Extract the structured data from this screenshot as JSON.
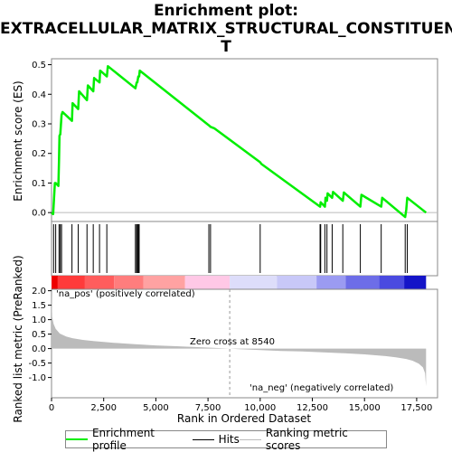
{
  "chart_data": {
    "type": "line",
    "title_line1": "Enrichment plot:",
    "title_line2": "EXTRACELLULAR_MATRIX_STRUCTURAL_CONSTITUEN",
    "title_line3": "T",
    "ylabel_top": "Enrichment score (ES)",
    "ylabel_bottom": "Ranked list metric (PreRanked)",
    "xlabel": "Rank in Ordered Dataset",
    "xlim": [
      0,
      18500
    ],
    "x_ticks": [
      0,
      2500,
      5000,
      7500,
      10000,
      12500,
      15000,
      17500
    ],
    "x_tick_labels": [
      "0",
      "2,500",
      "5,000",
      "7,500",
      "10,000",
      "12,500",
      "15,000",
      "17,500"
    ],
    "es_ylim": [
      -0.03,
      0.52
    ],
    "es_ticks": [
      0.0,
      0.1,
      0.2,
      0.3,
      0.4,
      0.5
    ],
    "es_tick_labels": [
      "0.0",
      "0.1",
      "0.2",
      "0.3",
      "0.4",
      "0.5"
    ],
    "metric_ylim": [
      -1.7,
      2.05
    ],
    "metric_ticks": [
      2.0,
      1.5,
      1.0,
      0.5,
      0.0,
      -0.5,
      -1.0
    ],
    "metric_tick_labels": [
      "2.0",
      "1.5",
      "1.0",
      "0.5",
      "0.0",
      "-0.5",
      "-1.0"
    ],
    "enrichment_profile": {
      "x": [
        0,
        80,
        160,
        200,
        330,
        360,
        380,
        420,
        480,
        530,
        980,
        1010,
        1280,
        1320,
        1700,
        1740,
        2000,
        2040,
        2300,
        2330,
        2650,
        2700,
        4020,
        4080,
        4110,
        4160,
        4200,
        4230,
        7540,
        7620,
        7800,
        10000,
        10050,
        12870,
        12900,
        13100,
        13130,
        13200,
        13230,
        13450,
        13490,
        13960,
        14010,
        14800,
        14850,
        15800,
        15850,
        16950,
        17000,
        17050,
        17950
      ],
      "y": [
        0.0,
        -0.005,
        0.1,
        0.1,
        0.09,
        0.18,
        0.26,
        0.265,
        0.33,
        0.34,
        0.31,
        0.37,
        0.35,
        0.41,
        0.38,
        0.43,
        0.41,
        0.455,
        0.44,
        0.48,
        0.46,
        0.495,
        0.42,
        0.44,
        0.44,
        0.46,
        0.46,
        0.48,
        0.295,
        0.29,
        0.285,
        0.17,
        0.165,
        0.02,
        0.035,
        0.02,
        0.05,
        0.04,
        0.065,
        0.05,
        0.07,
        0.04,
        0.068,
        0.02,
        0.06,
        0.02,
        0.05,
        -0.015,
        0.01,
        0.05,
        0.0
      ]
    },
    "hits": [
      100,
      200,
      360,
      420,
      480,
      980,
      1280,
      1700,
      2000,
      2300,
      2650,
      4020,
      4080,
      4110,
      4160,
      4200,
      7540,
      7620,
      10000,
      12870,
      12900,
      13100,
      13200,
      13450,
      13960,
      14800,
      15800,
      16950,
      17050
    ],
    "ranked_metric_curve": {
      "x": [
        0,
        30,
        100,
        200,
        400,
        700,
        1000,
        1500,
        2000,
        3000,
        4000,
        5000,
        6000,
        7000,
        8000,
        8540,
        9000,
        10000,
        11000,
        12000,
        13000,
        14000,
        15000,
        16000,
        16500,
        17000,
        17300,
        17600,
        17800,
        17900,
        17950
      ],
      "y": [
        2.0,
        1.1,
        0.85,
        0.68,
        0.52,
        0.42,
        0.36,
        0.3,
        0.26,
        0.2,
        0.15,
        0.11,
        0.08,
        0.05,
        0.02,
        0.0,
        -0.02,
        -0.05,
        -0.08,
        -0.1,
        -0.13,
        -0.16,
        -0.2,
        -0.26,
        -0.3,
        -0.36,
        -0.42,
        -0.52,
        -0.65,
        -0.85,
        -1.3
      ]
    },
    "zero_cross": 8540,
    "zero_cross_label": "Zero cross at 8540",
    "pos_label": "'na_pos' (positively correlated)",
    "neg_label": "'na_neg' (negatively correlated)",
    "legend": {
      "enrichment": "Enrichment profile",
      "hits": "Hits",
      "metric": "Ranking metric scores"
    },
    "colors": {
      "profile": "#00ee00",
      "hits": "#000000",
      "metric": "#bbbbbb",
      "pos_text": "#dd0000",
      "neg_text": "#0000cc"
    },
    "heat_segments": [
      {
        "start": 0,
        "end": 300,
        "color": "#ee0000"
      },
      {
        "start": 300,
        "end": 1600,
        "color": "#ff3b3b"
      },
      {
        "start": 1600,
        "end": 3000,
        "color": "#ff5d5d"
      },
      {
        "start": 3000,
        "end": 4400,
        "color": "#ff7d7d"
      },
      {
        "start": 4400,
        "end": 6400,
        "color": "#ffa2a2"
      },
      {
        "start": 6400,
        "end": 8540,
        "color": "#ffc8e6"
      },
      {
        "start": 8540,
        "end": 10800,
        "color": "#ddddfa"
      },
      {
        "start": 10800,
        "end": 12700,
        "color": "#c8c8f8"
      },
      {
        "start": 12700,
        "end": 14100,
        "color": "#9b9bf2"
      },
      {
        "start": 14100,
        "end": 15700,
        "color": "#6d6de8"
      },
      {
        "start": 15700,
        "end": 16900,
        "color": "#4a4ae0"
      },
      {
        "start": 16900,
        "end": 17950,
        "color": "#1414c8"
      }
    ]
  }
}
